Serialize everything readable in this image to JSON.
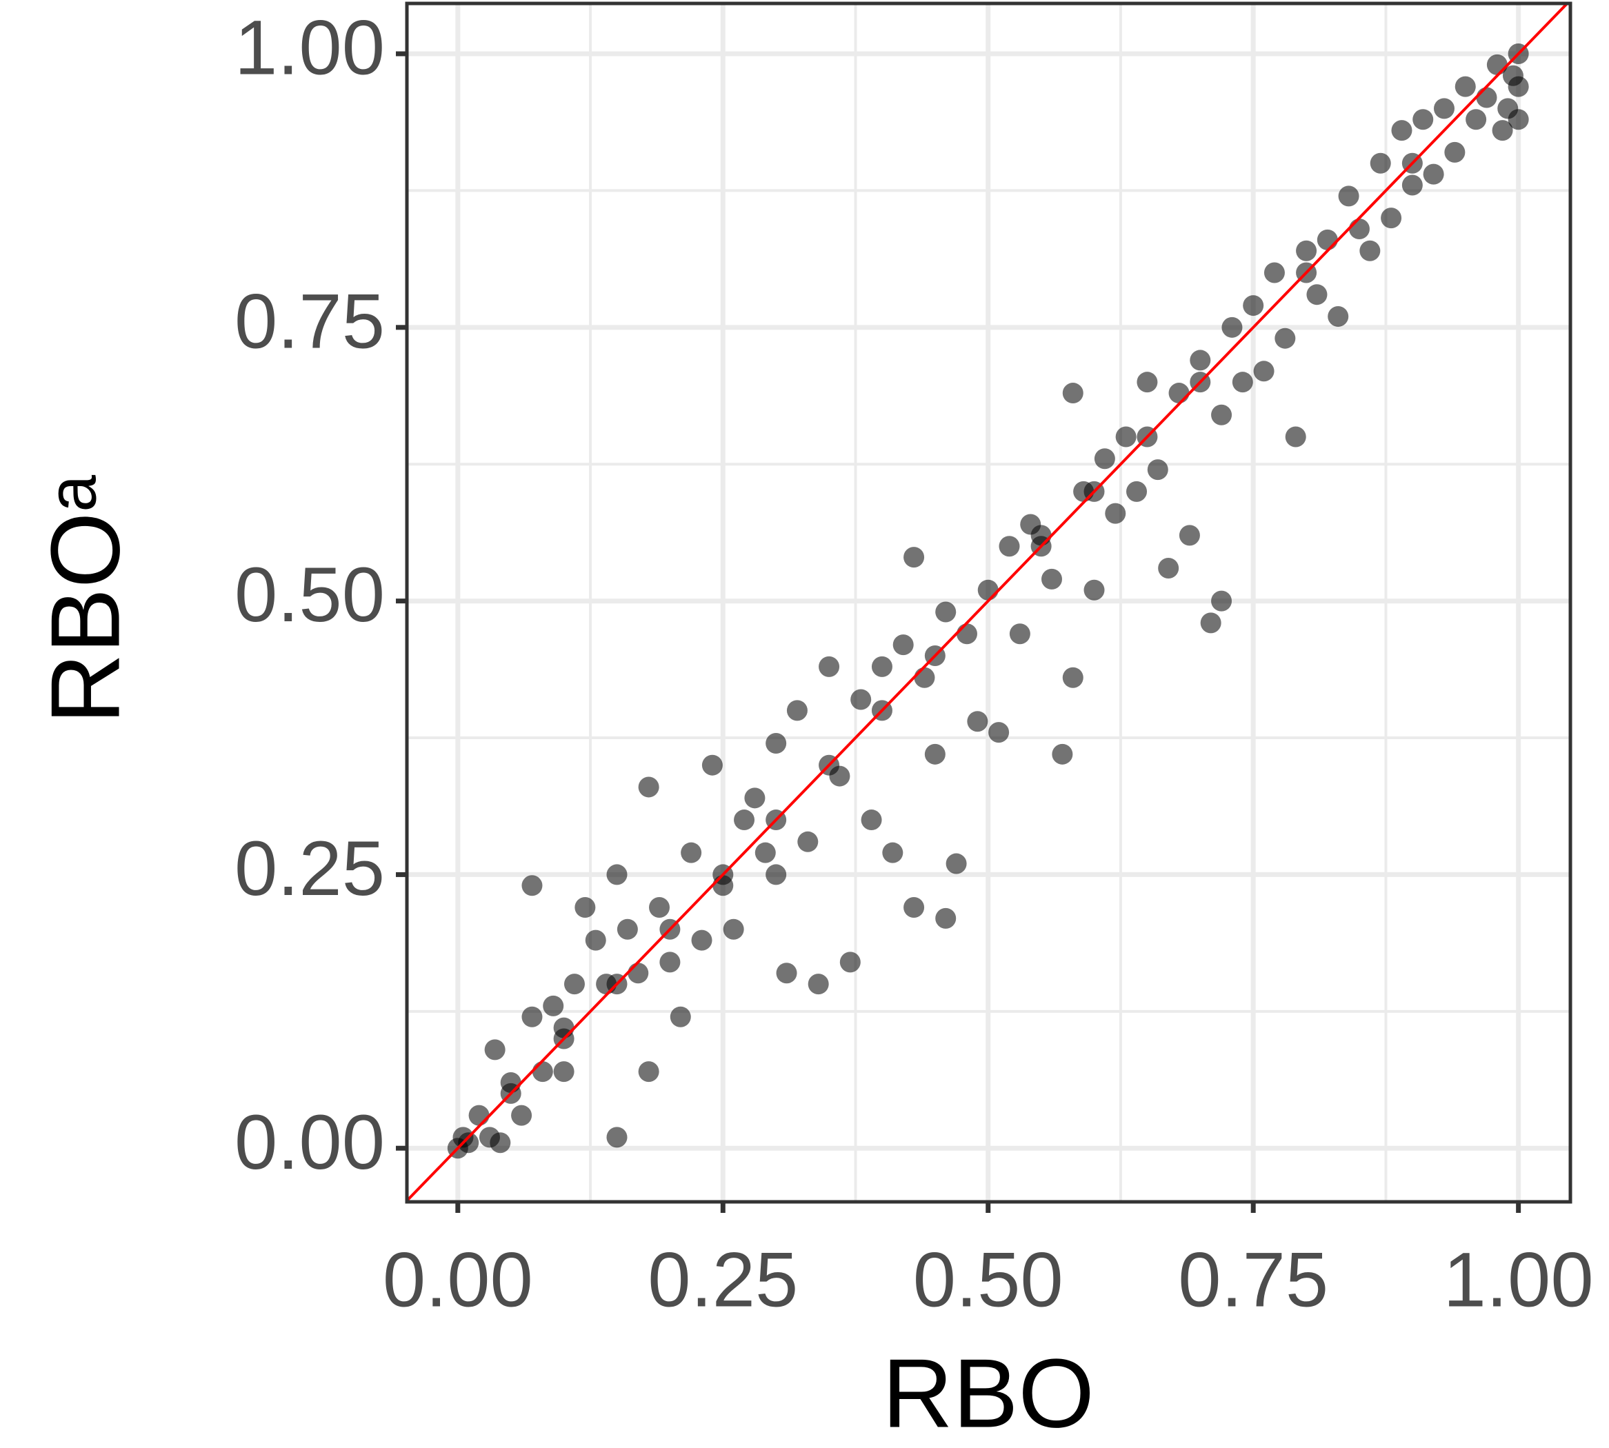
{
  "chart_data": {
    "type": "scatter",
    "x_label": "RBO",
    "y_label": "RBOᵃ",
    "x": [
      0,
      0.005,
      0.01,
      0.02,
      0.03,
      0.035,
      0.04,
      0.05,
      0.06,
      0.07,
      0.07,
      0.08,
      0.09,
      0.1,
      0.1,
      0.11,
      0.12,
      0.13,
      0.14,
      0.15,
      0.15,
      0.16,
      0.17,
      0.18,
      0.18,
      0.19,
      0.2,
      0.21,
      0.22,
      0.23,
      0.24,
      0.25,
      0.26,
      0.27,
      0.28,
      0.29,
      0.3,
      0.3,
      0.31,
      0.32,
      0.33,
      0.34,
      0.35,
      0.36,
      0.37,
      0.38,
      0.39,
      0.4,
      0.41,
      0.42,
      0.43,
      0.43,
      0.44,
      0.45,
      0.46,
      0.46,
      0.47,
      0.48,
      0.49,
      0.5,
      0.51,
      0.52,
      0.53,
      0.54,
      0.55,
      0.56,
      0.57,
      0.58,
      0.58,
      0.59,
      0.6,
      0.61,
      0.62,
      0.63,
      0.64,
      0.65,
      0.66,
      0.67,
      0.68,
      0.69,
      0.7,
      0.71,
      0.72,
      0.72,
      0.73,
      0.74,
      0.75,
      0.76,
      0.77,
      0.78,
      0.79,
      0.8,
      0.81,
      0.82,
      0.83,
      0.84,
      0.85,
      0.86,
      0.87,
      0.88,
      0.89,
      0.9,
      0.91,
      0.92,
      0.93,
      0.94,
      0.95,
      0.96,
      0.97,
      0.98,
      0.99,
      1,
      1,
      1,
      0.995,
      0.985,
      0.2,
      0.35,
      0.6,
      0.8,
      0.45,
      0.1,
      0.3,
      0.55,
      0.7,
      0.9,
      0.65,
      0.4,
      0.15,
      0.25,
      0.05
    ],
    "y": [
      0,
      0.01,
      0.005,
      0.03,
      0.01,
      0.09,
      0.005,
      0.06,
      0.03,
      0.12,
      0.24,
      0.07,
      0.13,
      0.11,
      0.07,
      0.15,
      0.22,
      0.19,
      0.15,
      0.01,
      0.25,
      0.2,
      0.16,
      0.07,
      0.33,
      0.22,
      0.17,
      0.12,
      0.27,
      0.19,
      0.35,
      0.24,
      0.2,
      0.3,
      0.32,
      0.27,
      0.37,
      0.25,
      0.16,
      0.4,
      0.28,
      0.15,
      0.44,
      0.34,
      0.17,
      0.41,
      0.3,
      0.44,
      0.27,
      0.46,
      0.22,
      0.54,
      0.43,
      0.36,
      0.49,
      0.21,
      0.26,
      0.47,
      0.39,
      0.51,
      0.38,
      0.55,
      0.47,
      0.57,
      0.56,
      0.52,
      0.36,
      0.43,
      0.69,
      0.6,
      0.51,
      0.63,
      0.58,
      0.65,
      0.6,
      0.7,
      0.62,
      0.53,
      0.69,
      0.56,
      0.72,
      0.48,
      0.67,
      0.5,
      0.75,
      0.7,
      0.77,
      0.71,
      0.8,
      0.74,
      0.65,
      0.82,
      0.78,
      0.83,
      0.76,
      0.87,
      0.84,
      0.82,
      0.9,
      0.85,
      0.93,
      0.88,
      0.94,
      0.89,
      0.95,
      0.91,
      0.97,
      0.94,
      0.96,
      0.99,
      0.95,
      1,
      0.97,
      0.94,
      0.98,
      0.93,
      0.2,
      0.35,
      0.6,
      0.8,
      0.45,
      0.1,
      0.3,
      0.55,
      0.7,
      0.9,
      0.65,
      0.4,
      0.15,
      0.25,
      0.05
    ],
    "color": "#000000",
    "xlim": [
      -0.048,
      1.049
    ],
    "ylim": [
      -0.049,
      1.046
    ],
    "xticks": [
      {
        "value": 0,
        "label": "0.00"
      },
      {
        "value": 0.25,
        "label": "0.25"
      },
      {
        "value": 0.5,
        "label": "0.50"
      },
      {
        "value": 0.75,
        "label": "0.75"
      },
      {
        "value": 1,
        "label": "1.00"
      }
    ],
    "yticks": [
      {
        "value": 0,
        "label": "0.00"
      },
      {
        "value": 0.25,
        "label": "0.25"
      },
      {
        "value": 0.5,
        "label": "0.50"
      },
      {
        "value": 0.75,
        "label": "0.75"
      },
      {
        "value": 1,
        "label": "1.00"
      }
    ],
    "x_minor_ticks": [
      0.125,
      0.375,
      0.625,
      0.875
    ],
    "y_minor_ticks": [
      0.125,
      0.375,
      0.625,
      0.875
    ],
    "grid": true,
    "reference_line": {
      "slope": 1,
      "intercept": 0,
      "color": "#ff0000"
    }
  }
}
